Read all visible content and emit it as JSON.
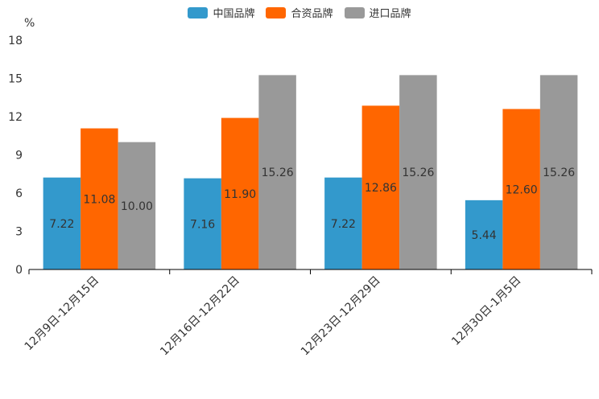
{
  "chart_data": {
    "type": "bar",
    "categories": [
      "12月9日-12月15日",
      "12月16日-12月22日",
      "12月23日-12月29日",
      "12月30日-1月5日"
    ],
    "series": [
      {
        "name": "中国品牌",
        "values": [
          7.22,
          7.16,
          7.22,
          5.44
        ],
        "color": "#3399CC",
        "labels": [
          "7.22",
          "7.16",
          "7.22",
          "5.44"
        ]
      },
      {
        "name": "合资品牌",
        "values": [
          11.08,
          11.9,
          12.86,
          12.6
        ],
        "color": "#FF6600",
        "labels": [
          "11.08",
          "11.90",
          "12.86",
          "12.60"
        ]
      },
      {
        "name": "进口品牌",
        "values": [
          10.0,
          15.26,
          15.26,
          15.26
        ],
        "color": "#999999",
        "labels": [
          "10.00",
          "15.26",
          "15.26",
          "15.26"
        ]
      }
    ],
    "ylabel": "%",
    "ylim": [
      0,
      18
    ],
    "yticks": [
      0,
      3,
      6,
      9,
      12,
      15,
      18
    ],
    "legend_position": "top-center",
    "grid": false
  }
}
